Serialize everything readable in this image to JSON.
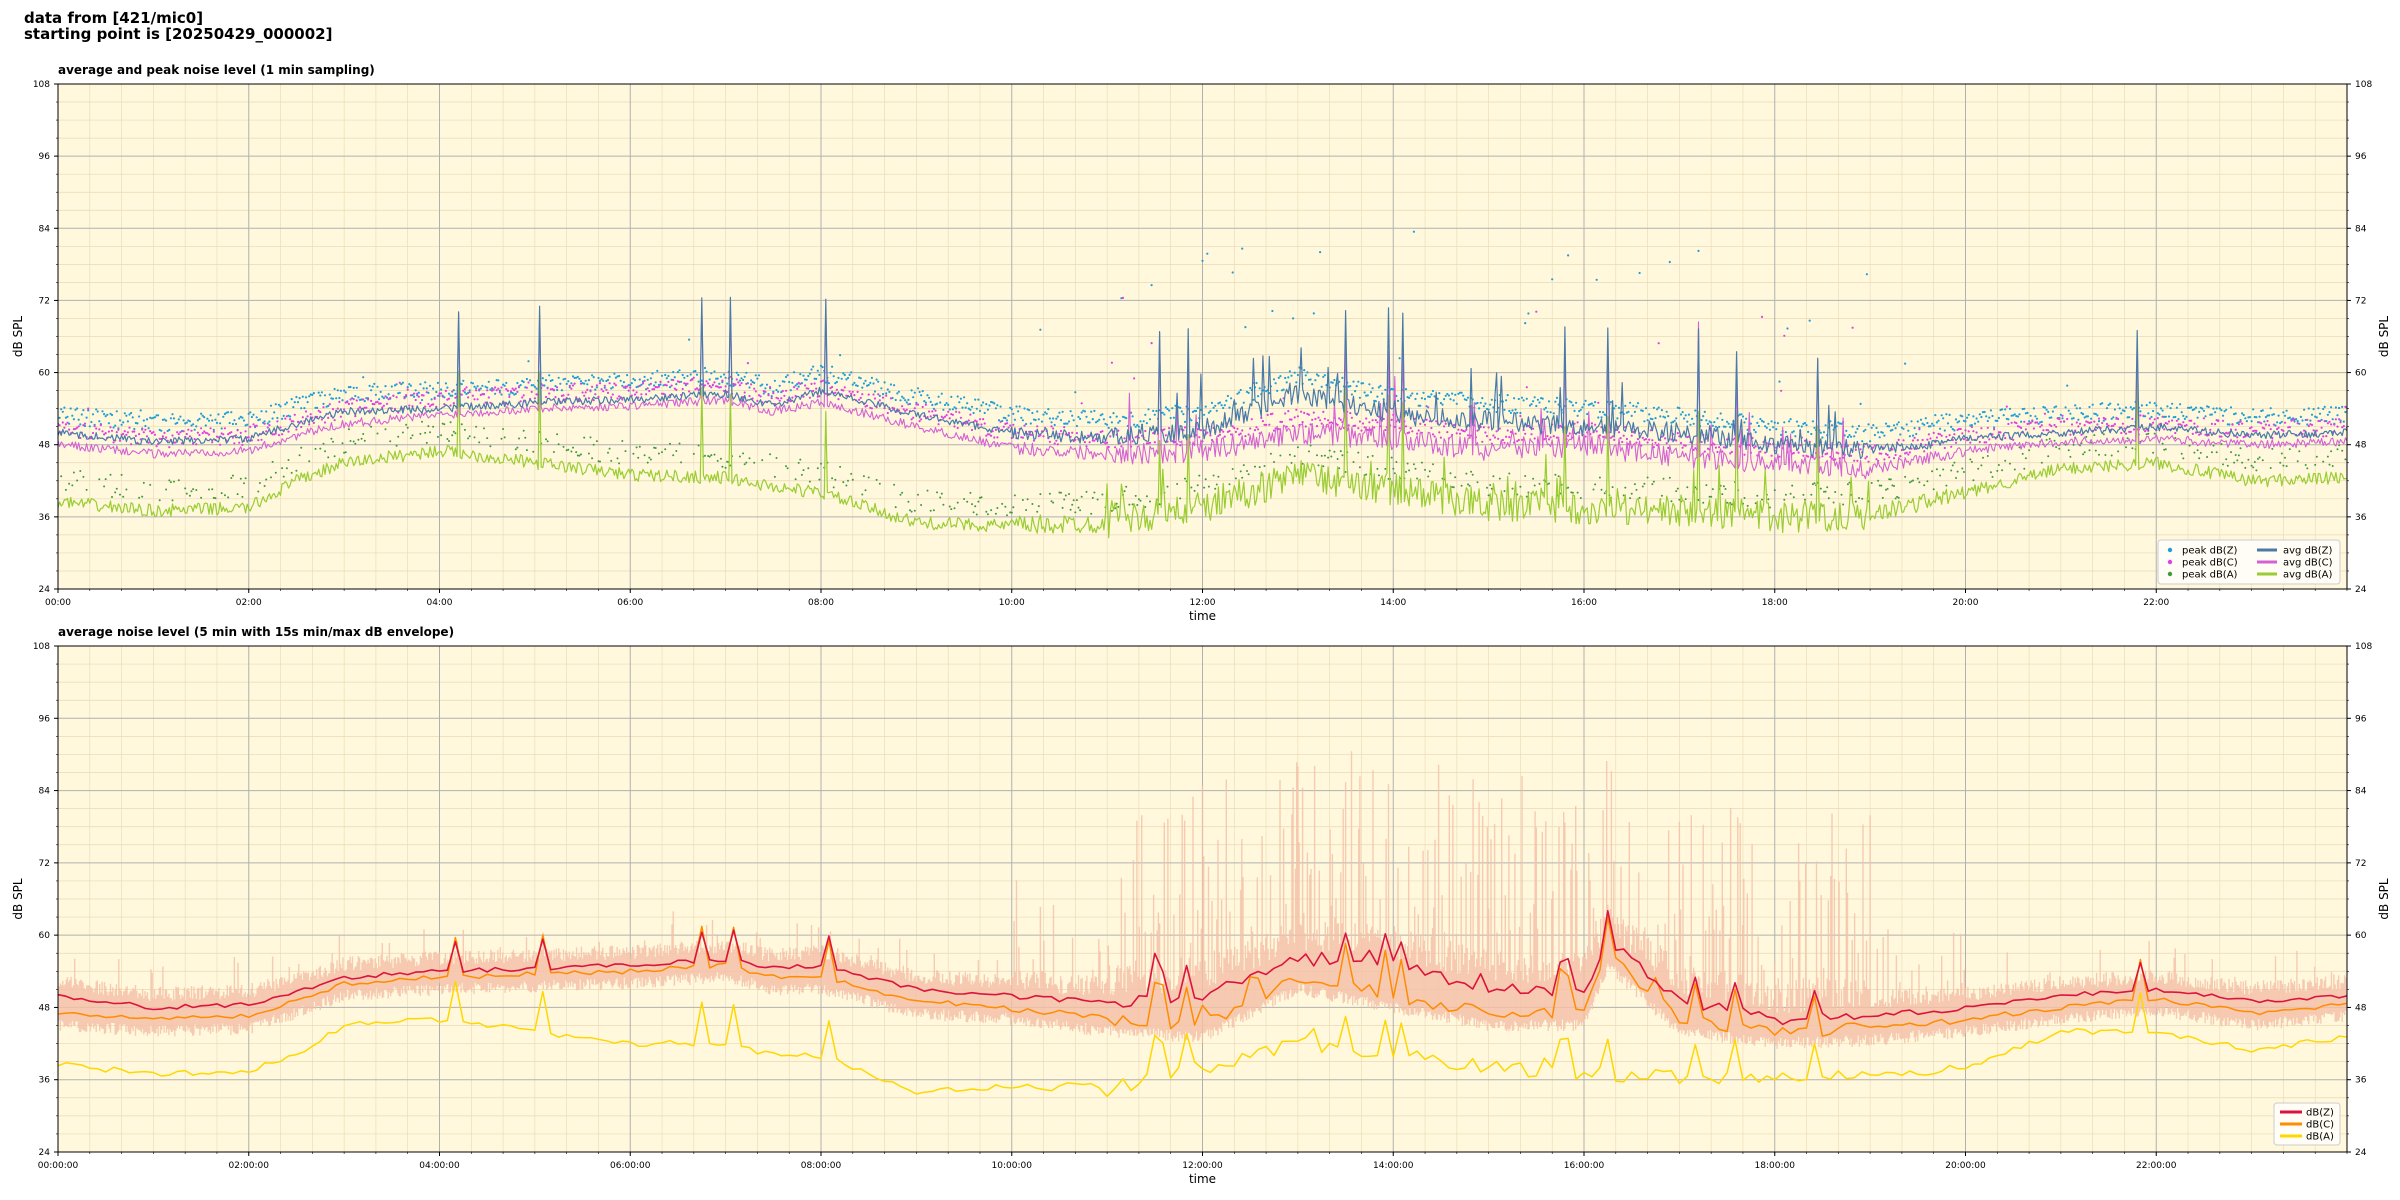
{
  "header": {
    "line1": "data from [421/mic0]",
    "line2": "starting point is [20250429_000002]"
  },
  "colors": {
    "plot_bg": "#fff8dc",
    "grid_major": "#b0b0b0",
    "grid_minor": "#ead8b4",
    "peak_z": "#1f9fd6",
    "peak_c": "#e040e0",
    "peak_a": "#3d9a3d",
    "avg_z": "#4a7aa8",
    "avg_c": "#d462d4",
    "avg_a": "#9acd32",
    "db_z": "#dc143c",
    "db_c": "#ff8c00",
    "db_a": "#ffd700",
    "envelope": "#f5c0a8"
  },
  "chart_data": [
    {
      "type": "line",
      "title": "average and peak noise level (1 min sampling)",
      "xlabel": "time",
      "ylabel": "dB SPL",
      "xlim_hours": [
        0,
        24
      ],
      "ylim": [
        24,
        108
      ],
      "yticks": [
        24,
        36,
        48,
        60,
        72,
        84,
        96,
        108
      ],
      "xtick_labels": [
        "00:00",
        "02:00",
        "04:00",
        "06:00",
        "08:00",
        "10:00",
        "12:00",
        "14:00",
        "16:00",
        "18:00",
        "20:00",
        "22:00"
      ],
      "grid": true,
      "legend_position": "bottom-right",
      "legend": [
        "peak dB(Z)",
        "peak dB(C)",
        "peak dB(A)",
        "avg dB(Z)",
        "avg dB(C)",
        "avg dB(A)"
      ],
      "series": [
        {
          "name": "avg dB(Z)",
          "x": [
            0,
            1,
            2,
            2.5,
            3,
            4,
            5,
            6,
            7,
            7.5,
            8,
            9,
            10,
            11,
            12,
            13,
            14,
            15,
            16,
            17,
            18,
            19,
            20,
            21,
            22,
            23,
            24
          ],
          "values": [
            50,
            48.5,
            49,
            51.5,
            53.5,
            54,
            55,
            55.5,
            56.5,
            54.5,
            57,
            53,
            50,
            49,
            50.5,
            56.5,
            53,
            52,
            51,
            50,
            48,
            47,
            49,
            50,
            51,
            49.5,
            50
          ]
        },
        {
          "name": "avg dB(C)",
          "x": [
            0,
            1,
            2,
            2.5,
            3,
            4,
            5,
            6,
            7,
            7.5,
            8,
            9,
            10,
            11,
            12,
            13,
            14,
            15,
            16,
            17,
            18,
            19,
            20,
            21,
            22,
            23,
            24
          ],
          "values": [
            48,
            46.5,
            47,
            49.5,
            51.5,
            53,
            54,
            54.5,
            55.5,
            53.5,
            55,
            51,
            47.5,
            46.5,
            47,
            50,
            49,
            47,
            48,
            46,
            45,
            44,
            47,
            48.5,
            49,
            48,
            48.5
          ]
        },
        {
          "name": "avg dB(A)",
          "x": [
            0,
            1,
            2,
            2.5,
            3,
            4,
            5,
            6,
            7,
            7.5,
            8,
            9,
            10,
            11,
            12,
            13,
            14,
            15,
            16,
            17,
            18,
            19,
            20,
            21,
            22,
            23,
            24
          ],
          "values": [
            38.5,
            37,
            37.5,
            42,
            45,
            47,
            45,
            43,
            42.5,
            41,
            40,
            35,
            34.5,
            35,
            37.5,
            43,
            40.5,
            38,
            37.5,
            37,
            36,
            36.5,
            40,
            44,
            45,
            42,
            42.5
          ]
        },
        {
          "name": "peak dB(Z)",
          "note": "scattered peak markers, approx. 2-8 dB above avg dB(Z), with outliers up to 85"
        },
        {
          "name": "peak dB(C)",
          "note": "scattered peak markers near avg dB(C)"
        },
        {
          "name": "peak dB(A)",
          "note": "scattered peak markers near avg dB(A)"
        }
      ]
    },
    {
      "type": "line",
      "title": "average noise level (5 min with 15s min/max dB envelope)",
      "xlabel": "time",
      "ylabel": "dB SPL",
      "xlim_hours": [
        0,
        24
      ],
      "ylim": [
        24,
        108
      ],
      "yticks": [
        24,
        36,
        48,
        60,
        72,
        84,
        96,
        108
      ],
      "xtick_labels": [
        "00:00:00",
        "02:00:00",
        "04:00:00",
        "06:00:00",
        "08:00:00",
        "10:00:00",
        "12:00:00",
        "14:00:00",
        "16:00:00",
        "18:00:00",
        "20:00:00",
        "22:00:00"
      ],
      "grid": true,
      "legend_position": "bottom-right",
      "legend": [
        "dB(Z)",
        "dB(C)",
        "dB(A)"
      ],
      "series": [
        {
          "name": "dB(Z)",
          "x": [
            0,
            1,
            2,
            2.5,
            3,
            4,
            5,
            6,
            7,
            7.5,
            8,
            9,
            10,
            11,
            12,
            13,
            14,
            15,
            16,
            16.25,
            17,
            18,
            19,
            20,
            21,
            22,
            23,
            24
          ],
          "values": [
            50,
            48,
            48.5,
            50.5,
            53,
            54,
            54.5,
            55,
            56,
            54.5,
            55,
            51,
            50,
            48.5,
            50,
            56,
            55,
            51,
            50.5,
            59,
            49,
            46,
            46.5,
            48,
            50,
            51,
            49,
            50
          ]
        },
        {
          "name": "dB(C)",
          "x": [
            0,
            1,
            2,
            2.5,
            3,
            4,
            5,
            6,
            7,
            7.5,
            8,
            9,
            10,
            11,
            12,
            13,
            14,
            15,
            16,
            16.25,
            17,
            18,
            19,
            20,
            21,
            22,
            23,
            24
          ],
          "values": [
            47,
            46,
            46.5,
            49,
            52,
            53,
            53.5,
            54,
            55,
            53,
            53,
            49,
            48,
            46,
            45,
            53,
            50,
            47,
            47,
            57,
            46,
            44,
            44.5,
            46,
            48,
            49.5,
            47,
            48.5
          ]
        },
        {
          "name": "dB(A)",
          "x": [
            0,
            1,
            2,
            2.5,
            3,
            4,
            5,
            6,
            7,
            7.5,
            8,
            9,
            10,
            11,
            12,
            13,
            14,
            15,
            16,
            17,
            18,
            19,
            20,
            21,
            22,
            23,
            24
          ],
          "values": [
            38.5,
            37,
            37.5,
            40,
            45,
            46,
            44,
            42,
            42,
            40,
            40,
            34,
            35,
            34.5,
            38,
            42,
            40,
            38,
            37,
            36.5,
            36,
            36.5,
            38,
            44,
            44,
            41,
            43
          ]
        },
        {
          "name": "envelope",
          "note": "15s min/max dB envelope, spikes up to ~84 between 11:00 and 19:00"
        }
      ]
    }
  ]
}
